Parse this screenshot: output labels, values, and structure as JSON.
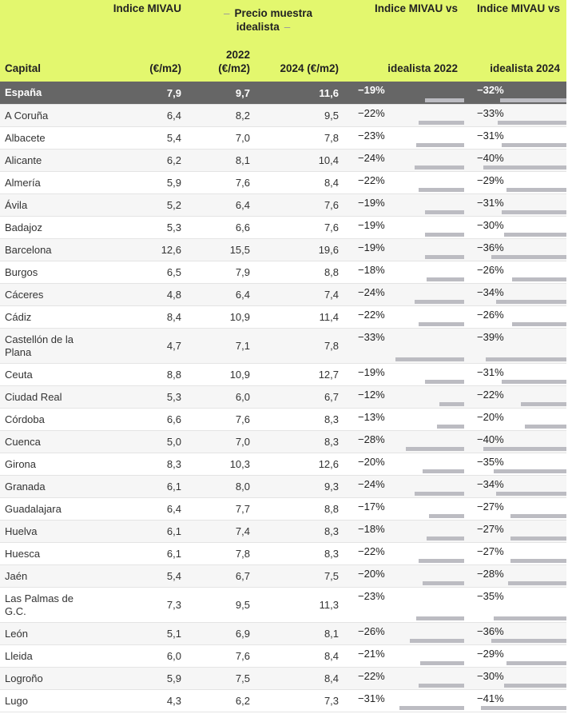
{
  "header": {
    "capital": "Capital",
    "mivau_top": "Indice MIVAU",
    "mivau_unit": "(€/m2)",
    "group": "Precio muestra idealista",
    "y2022": "2022 (€/m2)",
    "y2024": "2024 (€/m2)",
    "vs2022_top": "Indice MIVAU vs",
    "vs2022_bot": "idealista 2022",
    "vs2024_top": "Indice MIVAU vs",
    "vs2024_bot": "idealista 2024"
  },
  "colors": {
    "header_bg": "#e3f76e",
    "total_bg": "#666666",
    "bar": "#bcbcc2"
  },
  "rows": [
    {
      "capital": "España",
      "mivau": "7,9",
      "p2022": "9,7",
      "p2024": "11,6",
      "vs2022": "−19%",
      "vs2024": "−32%",
      "d2022": -19,
      "d2024": -32
    },
    {
      "capital": "A Coruña",
      "mivau": "6,4",
      "p2022": "8,2",
      "p2024": "9,5",
      "vs2022": "−22%",
      "vs2024": "−33%",
      "d2022": -22,
      "d2024": -33
    },
    {
      "capital": "Albacete",
      "mivau": "5,4",
      "p2022": "7,0",
      "p2024": "7,8",
      "vs2022": "−23%",
      "vs2024": "−31%",
      "d2022": -23,
      "d2024": -31
    },
    {
      "capital": "Alicante",
      "mivau": "6,2",
      "p2022": "8,1",
      "p2024": "10,4",
      "vs2022": "−24%",
      "vs2024": "−40%",
      "d2022": -24,
      "d2024": -40
    },
    {
      "capital": "Almería",
      "mivau": "5,9",
      "p2022": "7,6",
      "p2024": "8,4",
      "vs2022": "−22%",
      "vs2024": "−29%",
      "d2022": -22,
      "d2024": -29
    },
    {
      "capital": "Ávila",
      "mivau": "5,2",
      "p2022": "6,4",
      "p2024": "7,6",
      "vs2022": "−19%",
      "vs2024": "−31%",
      "d2022": -19,
      "d2024": -31
    },
    {
      "capital": "Badajoz",
      "mivau": "5,3",
      "p2022": "6,6",
      "p2024": "7,6",
      "vs2022": "−19%",
      "vs2024": "−30%",
      "d2022": -19,
      "d2024": -30
    },
    {
      "capital": "Barcelona",
      "mivau": "12,6",
      "p2022": "15,5",
      "p2024": "19,6",
      "vs2022": "−19%",
      "vs2024": "−36%",
      "d2022": -19,
      "d2024": -36
    },
    {
      "capital": "Burgos",
      "mivau": "6,5",
      "p2022": "7,9",
      "p2024": "8,8",
      "vs2022": "−18%",
      "vs2024": "−26%",
      "d2022": -18,
      "d2024": -26
    },
    {
      "capital": "Cáceres",
      "mivau": "4,8",
      "p2022": "6,4",
      "p2024": "7,4",
      "vs2022": "−24%",
      "vs2024": "−34%",
      "d2022": -24,
      "d2024": -34
    },
    {
      "capital": "Cádiz",
      "mivau": "8,4",
      "p2022": "10,9",
      "p2024": "11,4",
      "vs2022": "−22%",
      "vs2024": "−26%",
      "d2022": -22,
      "d2024": -26
    },
    {
      "capital": "Castellón de la Plana",
      "mivau": "4,7",
      "p2022": "7,1",
      "p2024": "7,8",
      "vs2022": "−33%",
      "vs2024": "−39%",
      "d2022": -33,
      "d2024": -39
    },
    {
      "capital": "Ceuta",
      "mivau": "8,8",
      "p2022": "10,9",
      "p2024": "12,7",
      "vs2022": "−19%",
      "vs2024": "−31%",
      "d2022": -19,
      "d2024": -31
    },
    {
      "capital": "Ciudad Real",
      "mivau": "5,3",
      "p2022": "6,0",
      "p2024": "6,7",
      "vs2022": "−12%",
      "vs2024": "−22%",
      "d2022": -12,
      "d2024": -22
    },
    {
      "capital": "Córdoba",
      "mivau": "6,6",
      "p2022": "7,6",
      "p2024": "8,3",
      "vs2022": "−13%",
      "vs2024": "−20%",
      "d2022": -13,
      "d2024": -20
    },
    {
      "capital": "Cuenca",
      "mivau": "5,0",
      "p2022": "7,0",
      "p2024": "8,3",
      "vs2022": "−28%",
      "vs2024": "−40%",
      "d2022": -28,
      "d2024": -40
    },
    {
      "capital": "Girona",
      "mivau": "8,3",
      "p2022": "10,3",
      "p2024": "12,6",
      "vs2022": "−20%",
      "vs2024": "−35%",
      "d2022": -20,
      "d2024": -35
    },
    {
      "capital": "Granada",
      "mivau": "6,1",
      "p2022": "8,0",
      "p2024": "9,3",
      "vs2022": "−24%",
      "vs2024": "−34%",
      "d2022": -24,
      "d2024": -34
    },
    {
      "capital": "Guadalajara",
      "mivau": "6,4",
      "p2022": "7,7",
      "p2024": "8,8",
      "vs2022": "−17%",
      "vs2024": "−27%",
      "d2022": -17,
      "d2024": -27
    },
    {
      "capital": "Huelva",
      "mivau": "6,1",
      "p2022": "7,4",
      "p2024": "8,3",
      "vs2022": "−18%",
      "vs2024": "−27%",
      "d2022": -18,
      "d2024": -27
    },
    {
      "capital": "Huesca",
      "mivau": "6,1",
      "p2022": "7,8",
      "p2024": "8,3",
      "vs2022": "−22%",
      "vs2024": "−27%",
      "d2022": -22,
      "d2024": -27
    },
    {
      "capital": "Jaén",
      "mivau": "5,4",
      "p2022": "6,7",
      "p2024": "7,5",
      "vs2022": "−20%",
      "vs2024": "−28%",
      "d2022": -20,
      "d2024": -28
    },
    {
      "capital": "Las Palmas de G.C.",
      "mivau": "7,3",
      "p2022": "9,5",
      "p2024": "11,3",
      "vs2022": "−23%",
      "vs2024": "−35%",
      "d2022": -23,
      "d2024": -35
    },
    {
      "capital": "León",
      "mivau": "5,1",
      "p2022": "6,9",
      "p2024": "8,1",
      "vs2022": "−26%",
      "vs2024": "−36%",
      "d2022": -26,
      "d2024": -36
    },
    {
      "capital": "Lleida",
      "mivau": "6,0",
      "p2022": "7,6",
      "p2024": "8,4",
      "vs2022": "−21%",
      "vs2024": "−29%",
      "d2022": -21,
      "d2024": -29
    },
    {
      "capital": "Logroño",
      "mivau": "5,9",
      "p2022": "7,5",
      "p2024": "8,4",
      "vs2022": "−22%",
      "vs2024": "−30%",
      "d2022": -22,
      "d2024": -30
    },
    {
      "capital": "Lugo",
      "mivau": "4,3",
      "p2022": "6,2",
      "p2024": "7,3",
      "vs2022": "−31%",
      "vs2024": "−41%",
      "d2022": -31,
      "d2024": -41
    }
  ]
}
